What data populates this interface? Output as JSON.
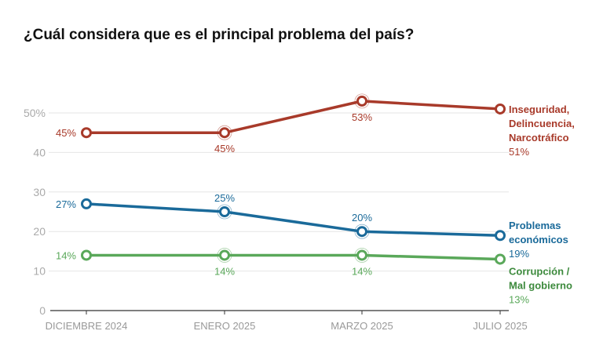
{
  "chart_data": {
    "type": "line",
    "title": "¿Cuál considera que es el principal problema del país?",
    "categories": [
      "DICIEMBRE 2024",
      "ENERO 2025",
      "MARZO 2025",
      "JULIO 2025"
    ],
    "ylim": [
      0,
      50
    ],
    "yticks": [
      "0",
      "10",
      "20",
      "30",
      "40",
      "50%"
    ],
    "grid": true,
    "legend": "end-labels",
    "series": [
      {
        "name": "Inseguridad, Delincuencia, Narcotráfico",
        "name_lines": [
          "Inseguridad,",
          "Delincuencia,",
          "Narcotráfico"
        ],
        "values": [
          45,
          45,
          53,
          51
        ],
        "labels": [
          "45%",
          "45%",
          "53%",
          "51%"
        ],
        "color": "#a83a2a",
        "label_pos": [
          "left",
          "below",
          "below",
          "end"
        ]
      },
      {
        "name": "Problemas económicos",
        "name_lines": [
          "Problemas",
          "económicos"
        ],
        "values": [
          27,
          25,
          20,
          19
        ],
        "labels": [
          "27%",
          "25%",
          "20%",
          "19%"
        ],
        "color": "#1a6a9a",
        "label_pos": [
          "left",
          "above",
          "above",
          "end"
        ]
      },
      {
        "name": "Corrupción / Mal gobierno",
        "name_lines": [
          "Corrupción /",
          "Mal gobierno"
        ],
        "values": [
          14,
          14,
          14,
          13
        ],
        "labels": [
          "14%",
          "14%",
          "14%",
          "13%"
        ],
        "color": "#5aa85a",
        "label_color": "#3d8a3d",
        "label_pos": [
          "left",
          "below",
          "below",
          "end"
        ]
      }
    ]
  }
}
